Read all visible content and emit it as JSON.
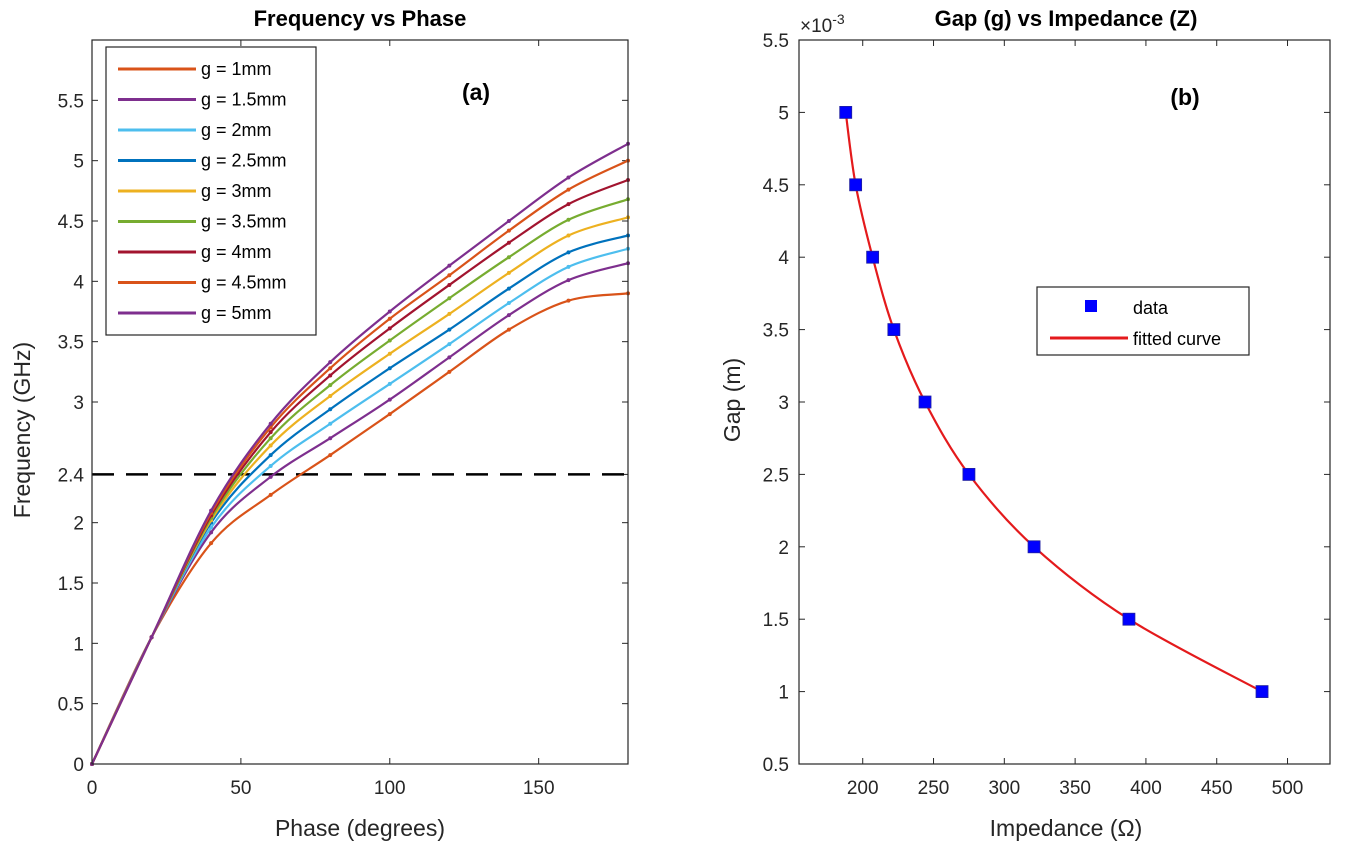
{
  "chart_data": [
    {
      "type": "line",
      "title": "Frequency vs Phase",
      "panel_label": "(a)",
      "xlabel": "Phase (degrees)",
      "ylabel": "Frequency (GHz)",
      "xlim": [
        0,
        180
      ],
      "ylim": [
        0,
        6
      ],
      "xticks": [
        "0",
        "50",
        "100",
        "150"
      ],
      "yticks": [
        "0",
        "0.5",
        "1",
        "1.5",
        "2",
        "2.4",
        "3",
        "3.5",
        "4",
        "4.5",
        "5",
        "5.5"
      ],
      "reference_line": {
        "y": 2.4,
        "style": "dashed"
      },
      "legend_position": "top-left",
      "x": [
        0,
        20,
        40,
        60,
        80,
        100,
        120,
        140,
        160,
        180
      ],
      "series": [
        {
          "name": "g = 1mm",
          "color": "#D95319",
          "values": [
            0,
            1.05,
            1.83,
            2.23,
            2.56,
            2.9,
            3.25,
            3.6,
            3.84,
            3.9
          ]
        },
        {
          "name": "g = 1.5mm",
          "color": "#7E2F8E",
          "values": [
            0,
            1.05,
            1.92,
            2.38,
            2.7,
            3.02,
            3.37,
            3.72,
            4.01,
            4.15
          ]
        },
        {
          "name": "g = 2mm",
          "color": "#4DBEEE",
          "values": [
            0,
            1.05,
            1.96,
            2.47,
            2.82,
            3.15,
            3.48,
            3.82,
            4.12,
            4.27
          ]
        },
        {
          "name": "g = 2.5mm",
          "color": "#0072BD",
          "values": [
            0,
            1.05,
            2.0,
            2.56,
            2.94,
            3.28,
            3.6,
            3.94,
            4.24,
            4.38
          ]
        },
        {
          "name": "g = 3mm",
          "color": "#EDB120",
          "values": [
            0,
            1.05,
            2.02,
            2.64,
            3.05,
            3.4,
            3.73,
            4.07,
            4.38,
            4.53
          ]
        },
        {
          "name": "g = 3.5mm",
          "color": "#77AC30",
          "values": [
            0,
            1.05,
            2.04,
            2.7,
            3.14,
            3.51,
            3.86,
            4.2,
            4.51,
            4.68
          ]
        },
        {
          "name": "g = 4mm",
          "color": "#A2142F",
          "values": [
            0,
            1.05,
            2.06,
            2.75,
            3.22,
            3.61,
            3.97,
            4.32,
            4.64,
            4.84
          ]
        },
        {
          "name": "g = 4.5mm",
          "color": "#D95319",
          "values": [
            0,
            1.05,
            2.08,
            2.79,
            3.28,
            3.69,
            4.05,
            4.42,
            4.76,
            5.0
          ]
        },
        {
          "name": "g = 5mm",
          "color": "#7E2F8E",
          "values": [
            0,
            1.05,
            2.1,
            2.82,
            3.33,
            3.75,
            4.13,
            4.5,
            4.86,
            5.14
          ]
        }
      ]
    },
    {
      "type": "scatter",
      "title": "Gap (g) vs Impedance (Z)",
      "panel_label": "(b)",
      "xlabel": "Impedance (Ω)",
      "ylabel": "Gap (m)",
      "exponent_label": "×10",
      "exponent_power": "-3",
      "xlim": [
        155,
        530
      ],
      "ylim": [
        0.5,
        5.5
      ],
      "xticks": [
        "200",
        "250",
        "300",
        "350",
        "400",
        "450",
        "500"
      ],
      "yticks": [
        "0.5",
        "1",
        "1.5",
        "2",
        "2.5",
        "3",
        "3.5",
        "4",
        "4.5",
        "5",
        "5.5"
      ],
      "legend_position": "center-right",
      "series": [
        {
          "name": "data",
          "color": "#0000FF",
          "marker": "square",
          "x": [
            188,
            195,
            207,
            222,
            244,
            275,
            321,
            388,
            482
          ],
          "y": [
            5.0,
            4.5,
            4.0,
            3.5,
            3.0,
            2.5,
            2.0,
            1.5,
            1.0
          ]
        },
        {
          "name": "fitted curve",
          "color": "#E41A1C",
          "marker": "none",
          "x": [
            188,
            195,
            207,
            222,
            244,
            275,
            321,
            388,
            482
          ],
          "y": [
            5.0,
            4.5,
            4.0,
            3.5,
            3.0,
            2.5,
            2.0,
            1.5,
            1.0
          ]
        }
      ]
    }
  ]
}
